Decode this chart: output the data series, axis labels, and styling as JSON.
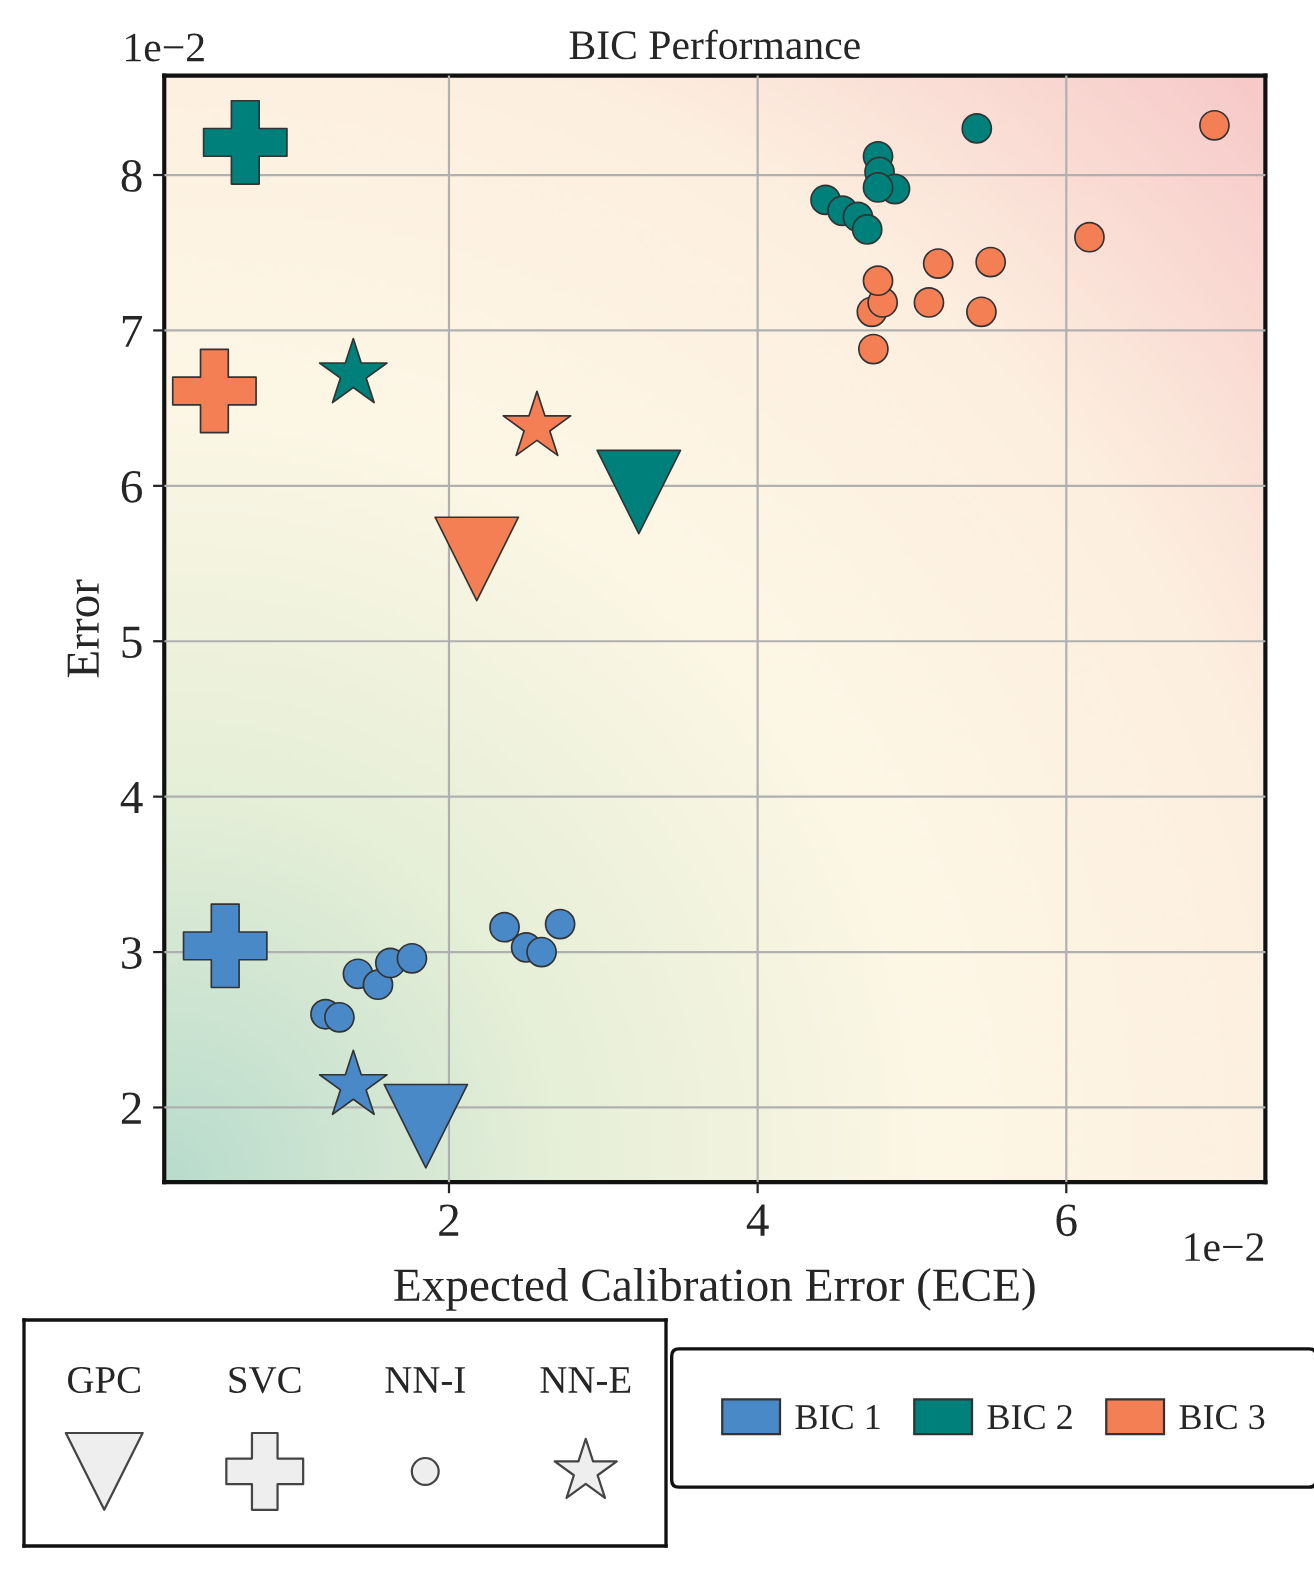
{
  "chart_data": {
    "type": "scatter",
    "title": "BIC Performance",
    "xlabel": "Expected Calibration Error (ECE)",
    "ylabel": "Error",
    "xlim": [
      0.155,
      7.29
    ],
    "ylim": [
      1.52,
      8.64
    ],
    "xticks": [
      2,
      4,
      6
    ],
    "yticks": [
      2,
      3,
      4,
      5,
      6,
      7,
      8
    ],
    "annotations": [
      "1e−2",
      "1e−2",
      "GPC",
      "SVC",
      "NN-I",
      "NN-E"
    ],
    "grid": true,
    "legend": "bottom",
    "series": [
      {
        "marker": "triangle",
        "color": "#4a89c8",
        "x": [
          1.85
        ],
        "values": [
          1.88
        ]
      },
      {
        "marker": "cross",
        "color": "#4a89c8",
        "x": [
          0.55
        ],
        "values": [
          3.04
        ]
      },
      {
        "name": "BIC 1",
        "marker": "circle",
        "color": "#4a89c8",
        "x": [
          1.2,
          1.29,
          1.41,
          1.54,
          1.62,
          1.76,
          2.36,
          2.5,
          2.6,
          2.72
        ],
        "values": [
          2.6,
          2.58,
          2.86,
          2.79,
          2.93,
          2.96,
          3.16,
          3.03,
          3.0,
          3.18
        ]
      },
      {
        "marker": "star",
        "color": "#4a89c8",
        "x": [
          1.38
        ],
        "values": [
          2.14
        ]
      },
      {
        "marker": "triangle",
        "color": "#00807a",
        "x": [
          3.23
        ],
        "values": [
          5.96
        ]
      },
      {
        "marker": "cross",
        "color": "#00807a",
        "x": [
          0.68
        ],
        "values": [
          8.21
        ]
      },
      {
        "name": "BIC 2",
        "marker": "circle",
        "color": "#00807a",
        "x": [
          4.44,
          4.55,
          4.65,
          4.71,
          4.78,
          4.79,
          4.81,
          4.89,
          4.78,
          5.42
        ],
        "values": [
          7.84,
          7.77,
          7.73,
          7.65,
          8.12,
          8.02,
          null,
          7.91,
          7.92,
          8.3
        ]
      },
      {
        "marker": "star",
        "color": "#00807a",
        "x": [
          1.38
        ],
        "values": [
          6.72
        ]
      },
      {
        "marker": "triangle",
        "color": "#f47f55",
        "x": [
          2.18
        ],
        "values": [
          5.53
        ]
      },
      {
        "marker": "cross",
        "color": "#f47f55",
        "x": [
          0.48
        ],
        "values": [
          6.61
        ]
      },
      {
        "name": "BIC 3",
        "marker": "circle",
        "color": "#f47f55",
        "x": [
          4.75,
          4.74,
          4.81,
          4.78,
          5.11,
          5.17,
          5.45,
          5.51,
          6.15,
          6.96
        ],
        "values": [
          6.88,
          7.12,
          7.18,
          7.32,
          7.18,
          7.43,
          7.12,
          7.44,
          7.6,
          8.32
        ]
      },
      {
        "marker": "star",
        "color": "#f47f55",
        "x": [
          2.57
        ],
        "values": [
          6.38
        ]
      }
    ]
  }
}
